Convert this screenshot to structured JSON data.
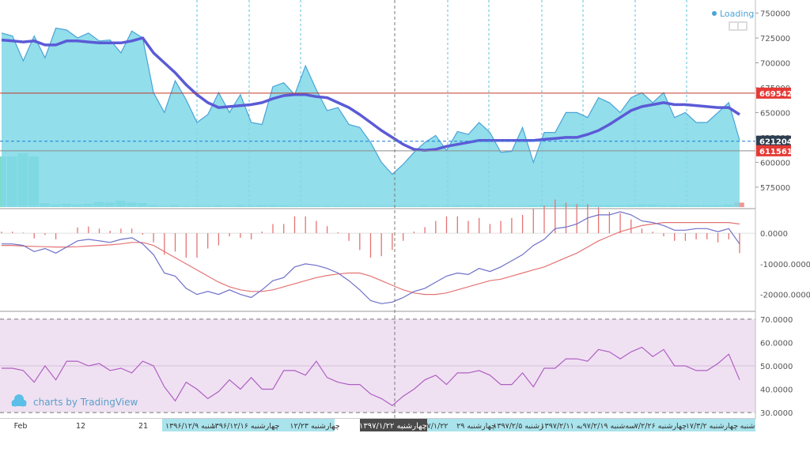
{
  "status": {
    "loading_label": "Loading"
  },
  "watermark": {
    "label": "charts by TradingView"
  },
  "price_axis": {
    "ticks": [
      "750000",
      "725000",
      "700000",
      "675000",
      "650000",
      "625000",
      "600000",
      "575000"
    ],
    "badges": [
      {
        "value": 669542,
        "label": "669542",
        "color": "#e53935",
        "text_color": "#ffffff"
      },
      {
        "value": 621204,
        "label": "621204",
        "color": "#2c3e50",
        "text_color": "#ffffff"
      },
      {
        "value": 611561,
        "label": "611561",
        "color": "#e53935",
        "text_color": "#ffffff"
      }
    ]
  },
  "macd_axis": {
    "ticks": [
      "0.0000",
      "-10000.0000",
      "-20000.0000"
    ]
  },
  "rsi_axis": {
    "ticks": [
      "70.0000",
      "60.0000",
      "50.0000",
      "40.0000",
      "30.0000"
    ]
  },
  "time_axis": {
    "labels": [
      "Feb",
      "12",
      "21",
      "۱۳۹۶/۱۲/۹ شنبه",
      "۱۳۹۶/۱۲/۱۶ چهارشنبه",
      "۱۲/۲۳ چهارشنبه",
      "۱۳۹۷/۱/۲۲ چهارشنبه",
      "۷/۱/۲۲",
      "۲۹ چهارشنبه",
      "۱۳۹۷/۲/۵ رشنبه",
      "۱۳۹۷/۲/۱۱ به",
      "۹۷/۲/۱۹ سه‌شنبه",
      "۷/۲/۲۶ چهارشنبه",
      "۱۷/۳/۲ چهارشنبه",
      "شنبه"
    ],
    "crosshair_label": "۱۳۹۷/۱/۲۲ چهارشنبه"
  },
  "colors": {
    "area_fill": "#7fd8e6",
    "area_line": "#4aa3d9",
    "moving_average": "#5b5bd6",
    "macd_line": "#6f6fc9",
    "signal_line": "#e57373",
    "histogram": "#e57373",
    "volume_green": "#4fd1b5",
    "volume_red": "#e57373",
    "rsi_line": "#b05fc2",
    "rsi_band": "#efe1f2",
    "grid_dashed": "#5bc0de",
    "level_red": "#c0392b",
    "level_gray": "#8c8c8c",
    "level_dashed": "#2e86de",
    "time_highlight": "#a9e3ec"
  },
  "chart_data": [
    {
      "type": "area",
      "name": "price",
      "ylim": [
        555000,
        760000
      ],
      "levels": {
        "upper_red": 669542,
        "mid_dashed": 621204,
        "lower_gray": 611561
      },
      "values": [
        730000,
        727000,
        702000,
        727000,
        705000,
        735000,
        733000,
        725000,
        730000,
        722000,
        723000,
        710000,
        732000,
        725000,
        670000,
        650000,
        682000,
        663000,
        640000,
        648000,
        670000,
        650000,
        668000,
        640000,
        638000,
        676000,
        680000,
        668000,
        697000,
        673000,
        652000,
        655000,
        638000,
        635000,
        620000,
        600000,
        588000,
        598000,
        610000,
        620000,
        627000,
        612000,
        631000,
        628000,
        640000,
        630000,
        610000,
        611000,
        635000,
        600000,
        630000,
        630000,
        650000,
        650000,
        645000,
        665000,
        660000,
        650000,
        665000,
        670000,
        660000,
        670000,
        645000,
        650000,
        640000,
        640000,
        650000,
        660000,
        622000
      ],
      "moving_average": [
        723000,
        722000,
        721000,
        722000,
        718000,
        718000,
        722000,
        722000,
        721000,
        720000,
        720000,
        720000,
        722000,
        725000,
        710000,
        700000,
        690000,
        678000,
        668000,
        660000,
        655000,
        656000,
        657000,
        658000,
        660000,
        664000,
        667000,
        668000,
        668000,
        666000,
        665000,
        660000,
        655000,
        648000,
        640000,
        632000,
        625000,
        618000,
        613000,
        612000,
        613000,
        616000,
        618000,
        620000,
        622000,
        622000,
        622000,
        622000,
        622000,
        622000,
        623000,
        624000,
        625000,
        625000,
        628000,
        632000,
        638000,
        645000,
        652000,
        656000,
        658000,
        660000,
        658000,
        658000,
        657000,
        656000,
        655000,
        655000,
        648000
      ],
      "volume": [
        {
          "v": 0.8,
          "c": "green"
        },
        {
          "v": 0.8,
          "c": "green"
        },
        {
          "v": 0.85,
          "c": "green"
        },
        {
          "v": 0.8,
          "c": "green"
        },
        {
          "v": 0.06,
          "c": "green"
        },
        {
          "v": 0.04,
          "c": "green"
        },
        {
          "v": 0.05,
          "c": "green"
        },
        {
          "v": 0.04,
          "c": "green"
        },
        {
          "v": 0.05,
          "c": "green"
        },
        {
          "v": 0.08,
          "c": "green"
        },
        {
          "v": 0.07,
          "c": "green"
        },
        {
          "v": 0.1,
          "c": "green"
        },
        {
          "v": 0.07,
          "c": "green"
        },
        {
          "v": 0.06,
          "c": "green"
        },
        {
          "v": 0.03,
          "c": "green"
        },
        {
          "v": 0.02,
          "c": "green"
        },
        {
          "v": 0.03,
          "c": "green"
        },
        {
          "v": 0.02,
          "c": "green"
        },
        {
          "v": 0.02,
          "c": "green"
        },
        {
          "v": 0.02,
          "c": "green"
        },
        {
          "v": 0.03,
          "c": "green"
        },
        {
          "v": 0.02,
          "c": "green"
        },
        {
          "v": 0.03,
          "c": "green"
        },
        {
          "v": 0.02,
          "c": "green"
        },
        {
          "v": 0.03,
          "c": "green"
        },
        {
          "v": 0.03,
          "c": "green"
        },
        {
          "v": 0.03,
          "c": "green"
        },
        {
          "v": 0.02,
          "c": "green"
        },
        {
          "v": 0.02,
          "c": "green"
        },
        {
          "v": 0.02,
          "c": "green"
        },
        {
          "v": 0.02,
          "c": "green"
        },
        {
          "v": 0.02,
          "c": "green"
        },
        {
          "v": 0.02,
          "c": "green"
        },
        {
          "v": 0.02,
          "c": "green"
        },
        {
          "v": 0.02,
          "c": "green"
        },
        {
          "v": 0.02,
          "c": "green"
        },
        {
          "v": 0.02,
          "c": "green"
        },
        {
          "v": 0.02,
          "c": "green"
        },
        {
          "v": 0.02,
          "c": "green"
        },
        {
          "v": 0.03,
          "c": "green"
        },
        {
          "v": 0.02,
          "c": "green"
        },
        {
          "v": 0.02,
          "c": "green"
        },
        {
          "v": 0.03,
          "c": "green"
        },
        {
          "v": 0.03,
          "c": "green"
        },
        {
          "v": 0.03,
          "c": "green"
        },
        {
          "v": 0.02,
          "c": "green"
        },
        {
          "v": 0.02,
          "c": "green"
        },
        {
          "v": 0.02,
          "c": "green"
        },
        {
          "v": 0.02,
          "c": "green"
        },
        {
          "v": 0.03,
          "c": "green"
        },
        {
          "v": 0.03,
          "c": "green"
        },
        {
          "v": 0.03,
          "c": "green"
        },
        {
          "v": 0.04,
          "c": "green"
        },
        {
          "v": 0.04,
          "c": "green"
        },
        {
          "v": 0.03,
          "c": "green"
        },
        {
          "v": 0.03,
          "c": "green"
        },
        {
          "v": 0.03,
          "c": "green"
        },
        {
          "v": 0.03,
          "c": "green"
        },
        {
          "v": 0.03,
          "c": "green"
        },
        {
          "v": 0.04,
          "c": "green"
        },
        {
          "v": 0.04,
          "c": "green"
        },
        {
          "v": 0.03,
          "c": "green"
        },
        {
          "v": 0.03,
          "c": "green"
        },
        {
          "v": 0.03,
          "c": "green"
        },
        {
          "v": 0.03,
          "c": "green"
        },
        {
          "v": 0.03,
          "c": "green"
        },
        {
          "v": 0.03,
          "c": "green"
        },
        {
          "v": 0.04,
          "c": "green"
        },
        {
          "v": 0.07,
          "c": "red"
        }
      ]
    },
    {
      "type": "line",
      "name": "macd",
      "ylim": [
        -25000,
        7000
      ],
      "macd": [
        -3500,
        -3500,
        -4000,
        -6000,
        -5000,
        -6500,
        -4500,
        -2500,
        -2000,
        -2500,
        -3000,
        -2000,
        -1500,
        -3500,
        -7000,
        -13000,
        -14000,
        -18000,
        -20000,
        -19000,
        -20000,
        -18500,
        -20000,
        -21000,
        -18500,
        -15500,
        -14500,
        -11000,
        -10000,
        -10500,
        -11500,
        -13000,
        -15500,
        -18500,
        -22000,
        -23000,
        -22500,
        -21000,
        -19000,
        -18000,
        -16000,
        -14000,
        -13000,
        -13500,
        -11500,
        -12500,
        -11000,
        -9000,
        -7000,
        -4000,
        -2000,
        1500,
        2000,
        3000,
        5000,
        6000,
        6000,
        7000,
        6000,
        4000,
        3500,
        2500,
        1000,
        1000,
        1500,
        1500,
        500,
        1500,
        -3500
      ],
      "signal": [
        -4000,
        -4000,
        -4200,
        -4300,
        -4400,
        -4500,
        -4500,
        -4400,
        -4200,
        -4000,
        -3800,
        -3500,
        -3000,
        -3000,
        -4000,
        -6000,
        -8000,
        -10000,
        -12000,
        -14000,
        -16000,
        -17500,
        -18500,
        -19000,
        -19000,
        -18500,
        -17500,
        -16500,
        -15500,
        -14500,
        -13800,
        -13300,
        -13000,
        -13000,
        -14000,
        -15500,
        -17000,
        -18500,
        -19500,
        -20000,
        -20000,
        -19500,
        -18500,
        -17500,
        -16500,
        -15500,
        -15000,
        -14000,
        -13000,
        -12000,
        -11000,
        -9500,
        -8000,
        -6500,
        -4500,
        -2500,
        -1000,
        500,
        1500,
        2500,
        3000,
        3500,
        3500,
        3500,
        3500,
        3500,
        3500,
        3500,
        3000
      ],
      "histogram": [
        500,
        500,
        200,
        -1700,
        -600,
        -2000,
        0,
        1900,
        2200,
        1500,
        800,
        1500,
        1500,
        -500,
        -3000,
        -7000,
        -6000,
        -8000,
        -8000,
        -5000,
        -4000,
        -1000,
        -1500,
        -2000,
        500,
        3000,
        3000,
        5500,
        5500,
        4000,
        2300,
        300,
        -2500,
        -5500,
        -8000,
        -7500,
        -5500,
        -2500,
        500,
        2000,
        4000,
        5500,
        5500,
        4000,
        5000,
        3000,
        4000,
        5000,
        6000,
        8000,
        9000,
        11000,
        10000,
        9500,
        9500,
        8500,
        7000,
        6500,
        4500,
        1500,
        500,
        -1000,
        -2500,
        -2500,
        -2000,
        -2000,
        -3000,
        -2000,
        -6500
      ]
    },
    {
      "type": "line",
      "name": "rsi",
      "ylim": [
        28,
        72
      ],
      "band": [
        30,
        70
      ],
      "values": [
        49,
        49,
        48,
        43,
        50,
        44,
        52,
        52,
        50,
        51,
        48,
        49,
        47,
        52,
        50,
        41,
        35,
        43,
        40,
        36,
        39,
        44,
        40,
        45,
        40,
        40,
        48,
        48,
        46,
        52,
        45,
        43,
        42,
        42,
        38,
        36,
        33,
        37,
        40,
        44,
        46,
        42,
        47,
        47,
        48,
        46,
        42,
        42,
        47,
        41,
        49,
        49,
        53,
        53,
        52,
        57,
        56,
        53,
        56,
        58,
        54,
        57,
        50,
        50,
        48,
        48,
        51,
        55,
        44
      ]
    }
  ]
}
